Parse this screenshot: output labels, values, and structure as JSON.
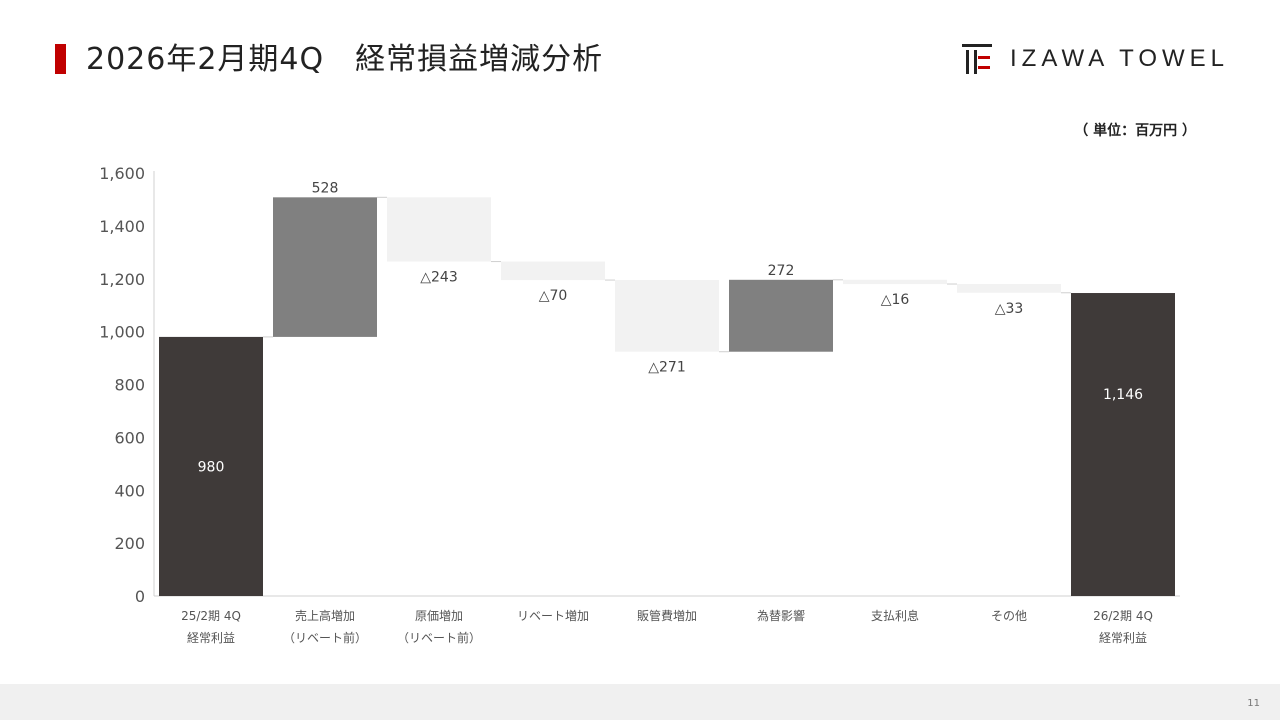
{
  "header": {
    "title": "2026年2月期4Q　経常損益増減分析",
    "logo_text": "IZAWA TOWEL"
  },
  "unit_label": "（ 単位：百万円 ）",
  "page_number": "11",
  "colors": {
    "accent": "#c00000",
    "total_bar": "#3f3a39",
    "increase_bar": "#808080",
    "decrease_bar": "#f2f2f2",
    "footer": "#f0f0f0"
  },
  "chart_data": {
    "type": "waterfall",
    "ylim": [
      0,
      1600
    ],
    "yticks": [
      "0",
      "200",
      "400",
      "600",
      "800",
      "1,000",
      "1,200",
      "1,400",
      "1,600"
    ],
    "ytick_values": [
      0,
      200,
      400,
      600,
      800,
      1000,
      1200,
      1400,
      1600
    ],
    "grid": false,
    "legend": "none",
    "items": [
      {
        "category": [
          "25/2期 4Q",
          "経常利益"
        ],
        "kind": "total",
        "value": 980,
        "label": "980"
      },
      {
        "category": [
          "売上高増加",
          "（リベート前）"
        ],
        "kind": "increase",
        "value": 528,
        "label": "528"
      },
      {
        "category": [
          "原価増加",
          "（リベート前）"
        ],
        "kind": "decrease",
        "value": -243,
        "label": "△243"
      },
      {
        "category": [
          "リベート増加"
        ],
        "kind": "decrease",
        "value": -70,
        "label": "△70"
      },
      {
        "category": [
          "販管費増加"
        ],
        "kind": "decrease",
        "value": -271,
        "label": "△271"
      },
      {
        "category": [
          "為替影響"
        ],
        "kind": "increase",
        "value": 272,
        "label": "272"
      },
      {
        "category": [
          "支払利息"
        ],
        "kind": "decrease",
        "value": -16,
        "label": "△16"
      },
      {
        "category": [
          "その他"
        ],
        "kind": "decrease",
        "value": -33,
        "label": "△33"
      },
      {
        "category": [
          "26/2期 4Q",
          "経常利益"
        ],
        "kind": "total",
        "value": 1146,
        "label": "1,146"
      }
    ]
  }
}
